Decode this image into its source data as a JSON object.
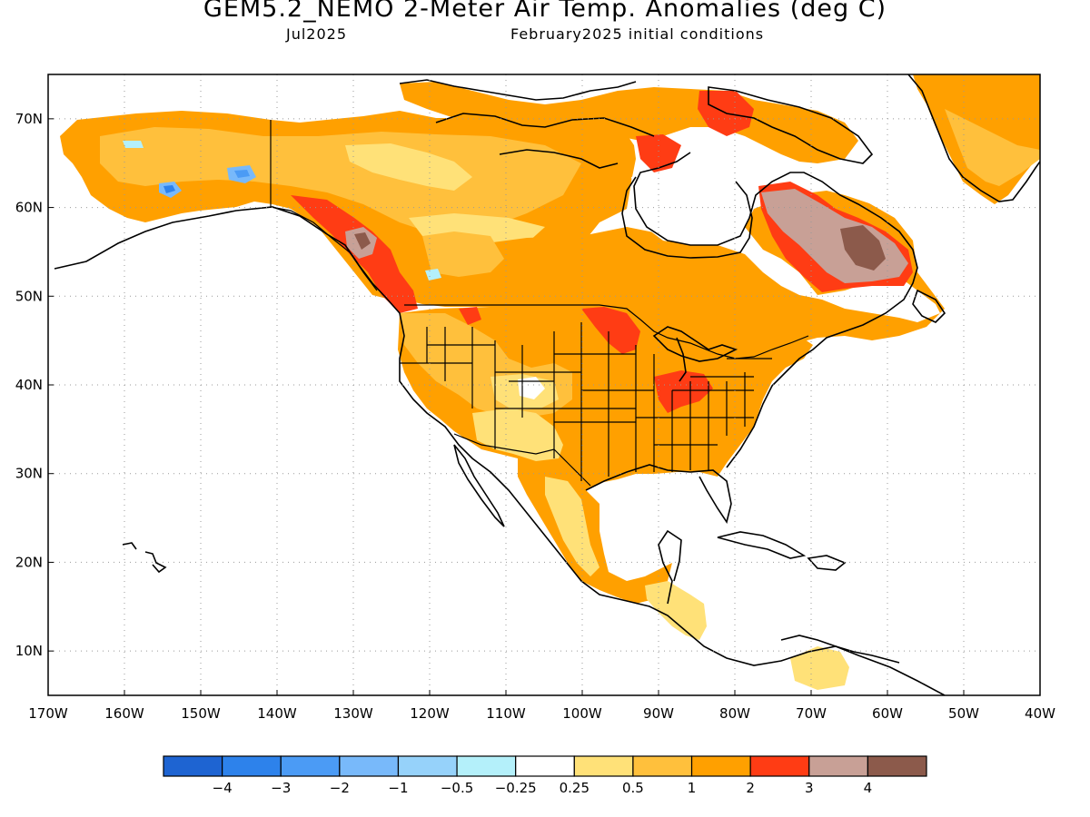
{
  "title": "GEM5.2_NEMO 2-Meter Air Temp. Anomalies (deg C)",
  "subtitle_left": "Jul2025",
  "subtitle_right": "February2025 initial conditions",
  "lat_labels": [
    "70N",
    "60N",
    "50N",
    "40N",
    "30N",
    "20N",
    "10N"
  ],
  "lon_labels": [
    "170W",
    "160W",
    "150W",
    "140W",
    "130W",
    "120W",
    "110W",
    "100W",
    "90W",
    "80W",
    "70W",
    "60W",
    "50W",
    "40W"
  ],
  "map_extent": {
    "lon_min": -170,
    "lon_max": -40,
    "lat_min": 5,
    "lat_max": 75
  },
  "colorbar": {
    "colors": [
      "#1e64d2",
      "#2d82eb",
      "#4b9bf5",
      "#78b9fa",
      "#96d2fa",
      "#b4f0fa",
      "#ffffff",
      "#ffe178",
      "#ffc03c",
      "#ffa000",
      "#ff3c14",
      "#c8a096",
      "#8c5a4b"
    ],
    "labels": [
      "−4",
      "−3",
      "−2",
      "−1",
      "−0.5",
      "−0.25",
      "0.25",
      "0.5",
      "1",
      "2",
      "3",
      "4"
    ]
  }
}
